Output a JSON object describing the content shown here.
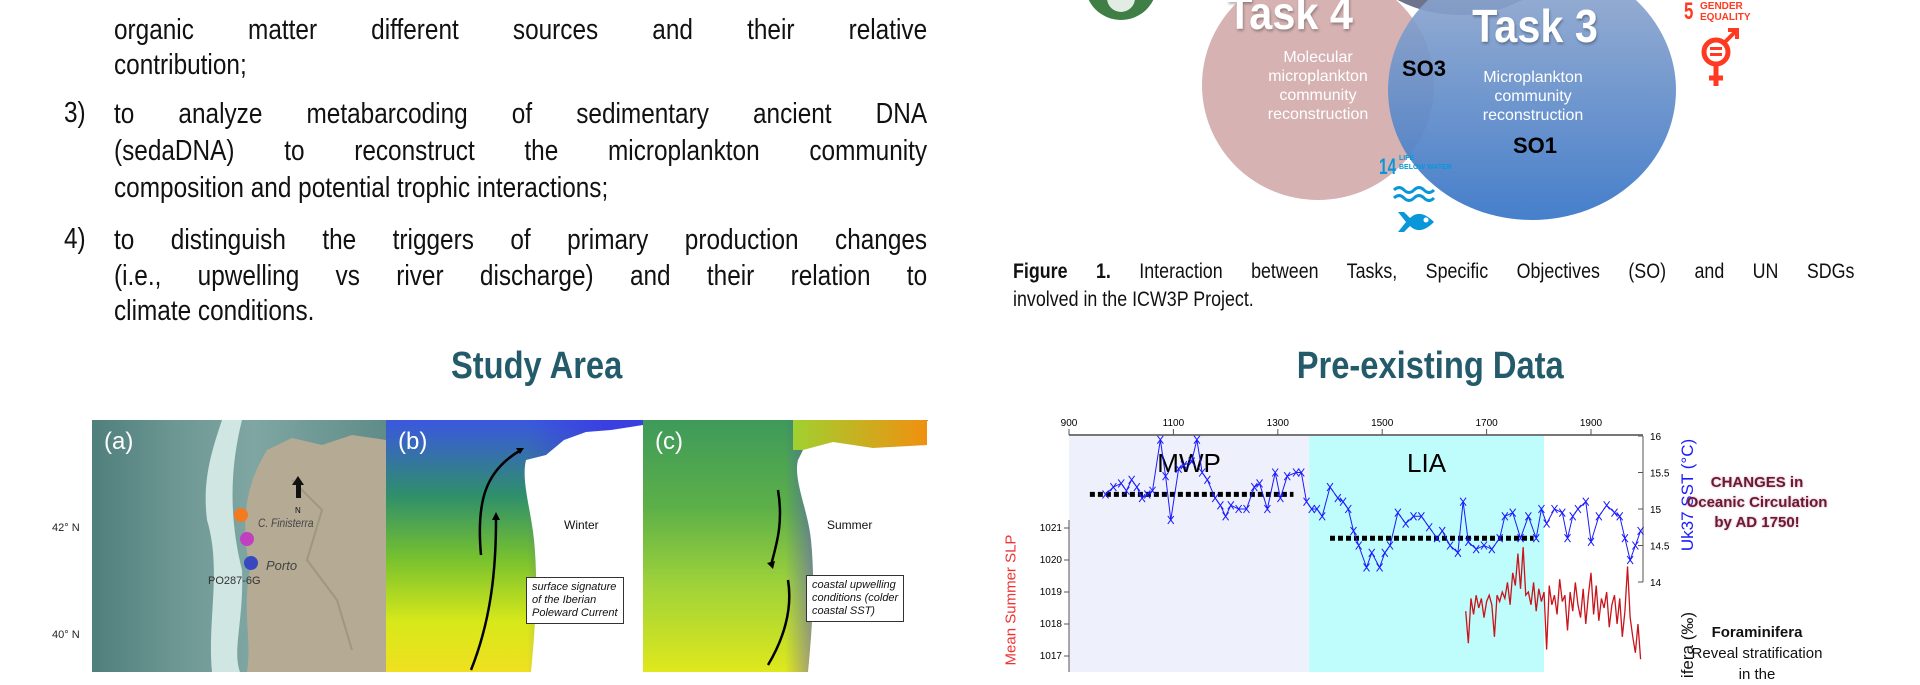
{
  "objectives": {
    "items": [
      {
        "number": "",
        "lines": [
          "organic matter different sources and their relative",
          "contribution;"
        ]
      },
      {
        "number": "3)",
        "lines": [
          "to analyze metabarcoding of sedimentary ancient DNA",
          "(sedaDNA) to reconstruct the microplankton community",
          "composition and potential trophic interactions;"
        ]
      },
      {
        "number": "4)",
        "lines": [
          "to distinguish the triggers of primary production changes",
          "(i.e., upwelling vs river discharge) and their relation to",
          "climate conditions."
        ]
      }
    ]
  },
  "figure1": {
    "task4": {
      "title": "Task 4",
      "lines": [
        "Molecular",
        "microplankton",
        "community",
        "reconstruction"
      ]
    },
    "task3": {
      "title": "Task 3",
      "lines": [
        "Microplankton",
        "community",
        "reconstruction"
      ]
    },
    "so3": "SO3",
    "so1": "SO1",
    "sdg14": {
      "number": "14",
      "line1": "LIFE",
      "line2": "BELOW WATER",
      "color": "#0a97d9"
    },
    "sdg5": {
      "number": "5",
      "line1": "GENDER",
      "line2": "EQUALITY",
      "color": "#ff3a21"
    },
    "sdg13_color": "#3f7e44",
    "colors": {
      "task4": "#d4aeae",
      "task3": "#3f78c4"
    },
    "caption_bold": "Figure 1.",
    "caption_line1": "Interaction between Tasks, Specific Objectives (SO) and UN SDGs",
    "caption_line2": "involved in the ICW3P Project."
  },
  "study_area": {
    "title": "Study Area",
    "lat_labels": [
      "42° N",
      "40° N"
    ],
    "panel_a": {
      "label": "(a)",
      "cape": "C. Finisterra",
      "city": "Porto",
      "core": "PO287-6G",
      "north": "N",
      "site_colors": [
        "#f47a20",
        "#c040c0",
        "#3848c0"
      ]
    },
    "panel_b": {
      "label": "(b)",
      "season": "Winter",
      "note": [
        "surface signature",
        "of the Iberian",
        "Poleward Current"
      ]
    },
    "panel_c": {
      "label": "(c)",
      "season": "Summer",
      "note": [
        "coastal upwelling",
        "conditions (colder",
        "coastal SST)"
      ]
    }
  },
  "preexisting": {
    "title": "Pre-existing Data",
    "side_note": [
      "CHANGES in",
      "Oceanic Circulation",
      "by AD 1750!"
    ],
    "foram_title": "Foraminifera",
    "foram_lines": [
      "Reveal stratification",
      "in the"
    ]
  },
  "chart_data": {
    "type": "line",
    "x_ticks": [
      "900",
      "1100",
      "1300",
      "1500",
      "1700",
      "1900"
    ],
    "xlim": [
      900,
      2000
    ],
    "periods": [
      {
        "label": "MWP",
        "start": 900,
        "end": 1360,
        "color": "#eef0fb"
      },
      {
        "label": "LIA",
        "start": 1360,
        "end": 1810,
        "color": "#bffcfc"
      }
    ],
    "sst_axis": {
      "label": "Uk37 SST (°C)",
      "ticks": [
        "16",
        "15.5",
        "15",
        "14.5",
        "14"
      ],
      "ylim": [
        14,
        16
      ],
      "color": "#1a1aff"
    },
    "slp_axis": {
      "label": "Mean Summer SLP",
      "ticks": [
        "1021",
        "1020",
        "1019",
        "1018",
        "1017"
      ],
      "color": "#ee3333"
    },
    "third_axis_label": "ifera (‰)",
    "means": [
      {
        "start": 940,
        "end": 1330,
        "value": 15.2
      },
      {
        "start": 1400,
        "end": 1790,
        "value": 14.6
      }
    ],
    "sst_series": {
      "x": [
        970,
        985,
        1000,
        1010,
        1020,
        1030,
        1040,
        1050,
        1060,
        1075,
        1085,
        1095,
        1110,
        1120,
        1135,
        1145,
        1155,
        1165,
        1180,
        1190,
        1200,
        1210,
        1225,
        1240,
        1255,
        1265,
        1280,
        1295,
        1305,
        1318,
        1335,
        1345,
        1355,
        1365,
        1375,
        1385,
        1400,
        1415,
        1425,
        1435,
        1445,
        1455,
        1470,
        1480,
        1495,
        1505,
        1515,
        1530,
        1545,
        1560,
        1575,
        1590,
        1605,
        1615,
        1630,
        1645,
        1655,
        1665,
        1680,
        1695,
        1710,
        1725,
        1735,
        1750,
        1765,
        1780,
        1795,
        1805,
        1815,
        1830,
        1845,
        1855,
        1865,
        1875,
        1890,
        1900,
        1915,
        1930,
        1945,
        1955,
        1965,
        1975,
        1985,
        1995
      ],
      "y": [
        15.2,
        15.3,
        15.35,
        15.25,
        15.4,
        15.3,
        15.15,
        15.2,
        15.25,
        15.95,
        15.45,
        14.85,
        15.55,
        15.6,
        15.65,
        15.95,
        15.5,
        15.4,
        15.15,
        15.05,
        14.9,
        15.05,
        15.0,
        15.0,
        15.3,
        15.35,
        15.0,
        15.5,
        15.15,
        15.45,
        15.5,
        15.5,
        15.1,
        15.0,
        15.0,
        14.9,
        15.3,
        15.15,
        15.1,
        15.0,
        14.7,
        14.5,
        14.2,
        14.4,
        14.2,
        14.4,
        14.5,
        14.95,
        14.8,
        14.9,
        14.9,
        14.75,
        14.6,
        14.7,
        14.5,
        14.4,
        15.1,
        14.55,
        14.45,
        14.5,
        14.45,
        14.6,
        14.9,
        14.95,
        14.6,
        14.9,
        14.6,
        15.0,
        14.8,
        15.0,
        14.95,
        14.6,
        14.9,
        15.0,
        15.1,
        14.55,
        14.9,
        15.05,
        14.95,
        14.9,
        14.6,
        14.3,
        14.5,
        14.7
      ]
    },
    "slp_series": {
      "x": [
        1660,
        1665,
        1670,
        1675,
        1680,
        1685,
        1690,
        1695,
        1700,
        1705,
        1710,
        1715,
        1720,
        1725,
        1730,
        1735,
        1740,
        1745,
        1750,
        1755,
        1760,
        1765,
        1770,
        1775,
        1780,
        1785,
        1790,
        1795,
        1800,
        1805,
        1810,
        1815,
        1820,
        1825,
        1830,
        1835,
        1840,
        1845,
        1850,
        1855,
        1860,
        1865,
        1870,
        1875,
        1880,
        1885,
        1890,
        1895,
        1900,
        1905,
        1910,
        1915,
        1920,
        1925,
        1930,
        1935,
        1940,
        1945,
        1950,
        1955,
        1960,
        1965,
        1970,
        1975,
        1980,
        1985,
        1990,
        1995
      ],
      "y": [
        1018.4,
        1017.4,
        1018.8,
        1018.3,
        1018.9,
        1018.5,
        1018.8,
        1018.2,
        1018.7,
        1018.9,
        1018.6,
        1017.6,
        1018.9,
        1018.7,
        1019.0,
        1018.8,
        1019.3,
        1018.6,
        1019.6,
        1019.2,
        1020.2,
        1019.1,
        1020.4,
        1018.9,
        1019.0,
        1018.6,
        1019.3,
        1018.4,
        1019.1,
        1018.7,
        1019.0,
        1017.2,
        1019.2,
        1018.6,
        1018.9,
        1018.3,
        1019.4,
        1018.7,
        1018.9,
        1017.8,
        1019.0,
        1018.4,
        1019.3,
        1018.6,
        1018.2,
        1019.1,
        1018.0,
        1018.9,
        1019.6,
        1018.3,
        1019.2,
        1018.1,
        1018.8,
        1018.5,
        1019.0,
        1017.9,
        1018.6,
        1018.9,
        1018.0,
        1018.8,
        1017.6,
        1018.4,
        1019.8,
        1018.2,
        1017.6,
        1017.1,
        1018.0,
        1016.9
      ]
    }
  }
}
